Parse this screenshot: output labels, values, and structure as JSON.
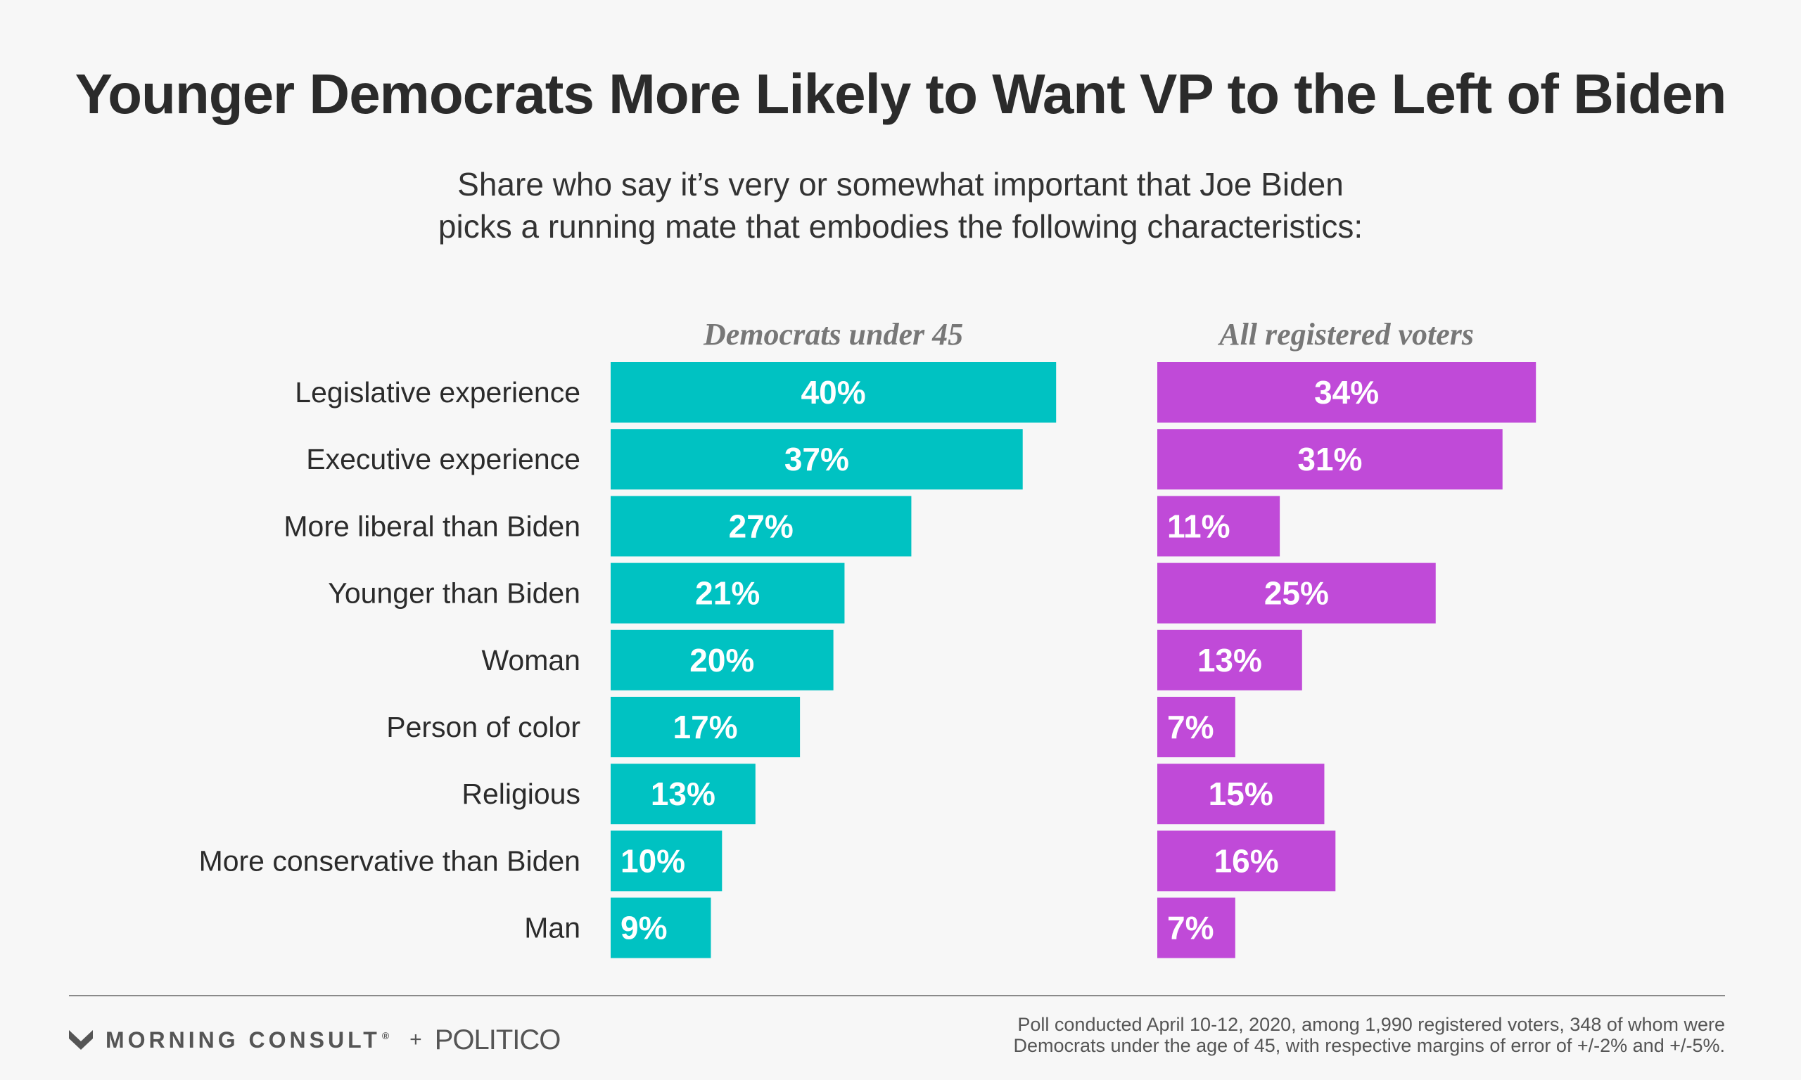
{
  "header": {
    "title": "Younger Democrats More Likely to Want VP to the Left of Biden",
    "subtitle_line1": "Share who say it’s very or somewhat important that Joe Biden",
    "subtitle_line2": "picks a running mate that embodies the following characteristics:"
  },
  "chart_data": {
    "type": "bar",
    "orientation": "horizontal",
    "categories": [
      "Legislative experience",
      "Executive experience",
      "More liberal than Biden",
      "Younger than Biden",
      "Woman",
      "Person of color",
      "Religious",
      "More conservative than Biden",
      "Man"
    ],
    "series": [
      {
        "name": "Democrats under 45",
        "color": "#00c2c2",
        "values": [
          40,
          37,
          27,
          21,
          20,
          17,
          13,
          10,
          9
        ],
        "labels": [
          "40%",
          "37%",
          "27%",
          "21%",
          "20%",
          "17%",
          "13%",
          "10%",
          "9%"
        ]
      },
      {
        "name": "All registered voters",
        "color": "#c04ad8",
        "values": [
          34,
          31,
          11,
          25,
          13,
          7,
          15,
          16,
          7
        ],
        "labels": [
          "34%",
          "31%",
          "11%",
          "25%",
          "13%",
          "7%",
          "15%",
          "16%",
          "7%"
        ]
      }
    ],
    "unit": "%",
    "grid": false
  },
  "footer": {
    "brand_mc": "MORNING CONSULT",
    "brand_mc_mark": "®",
    "plus": "+",
    "brand_politico": "POLITICO",
    "note_line1": "Poll conducted April 10-12, 2020, among 1,990 registered voters, 348 of whom were",
    "note_line2": "Democrats under the age of 45, with respective margins of error of +/-2% and +/-5%."
  }
}
